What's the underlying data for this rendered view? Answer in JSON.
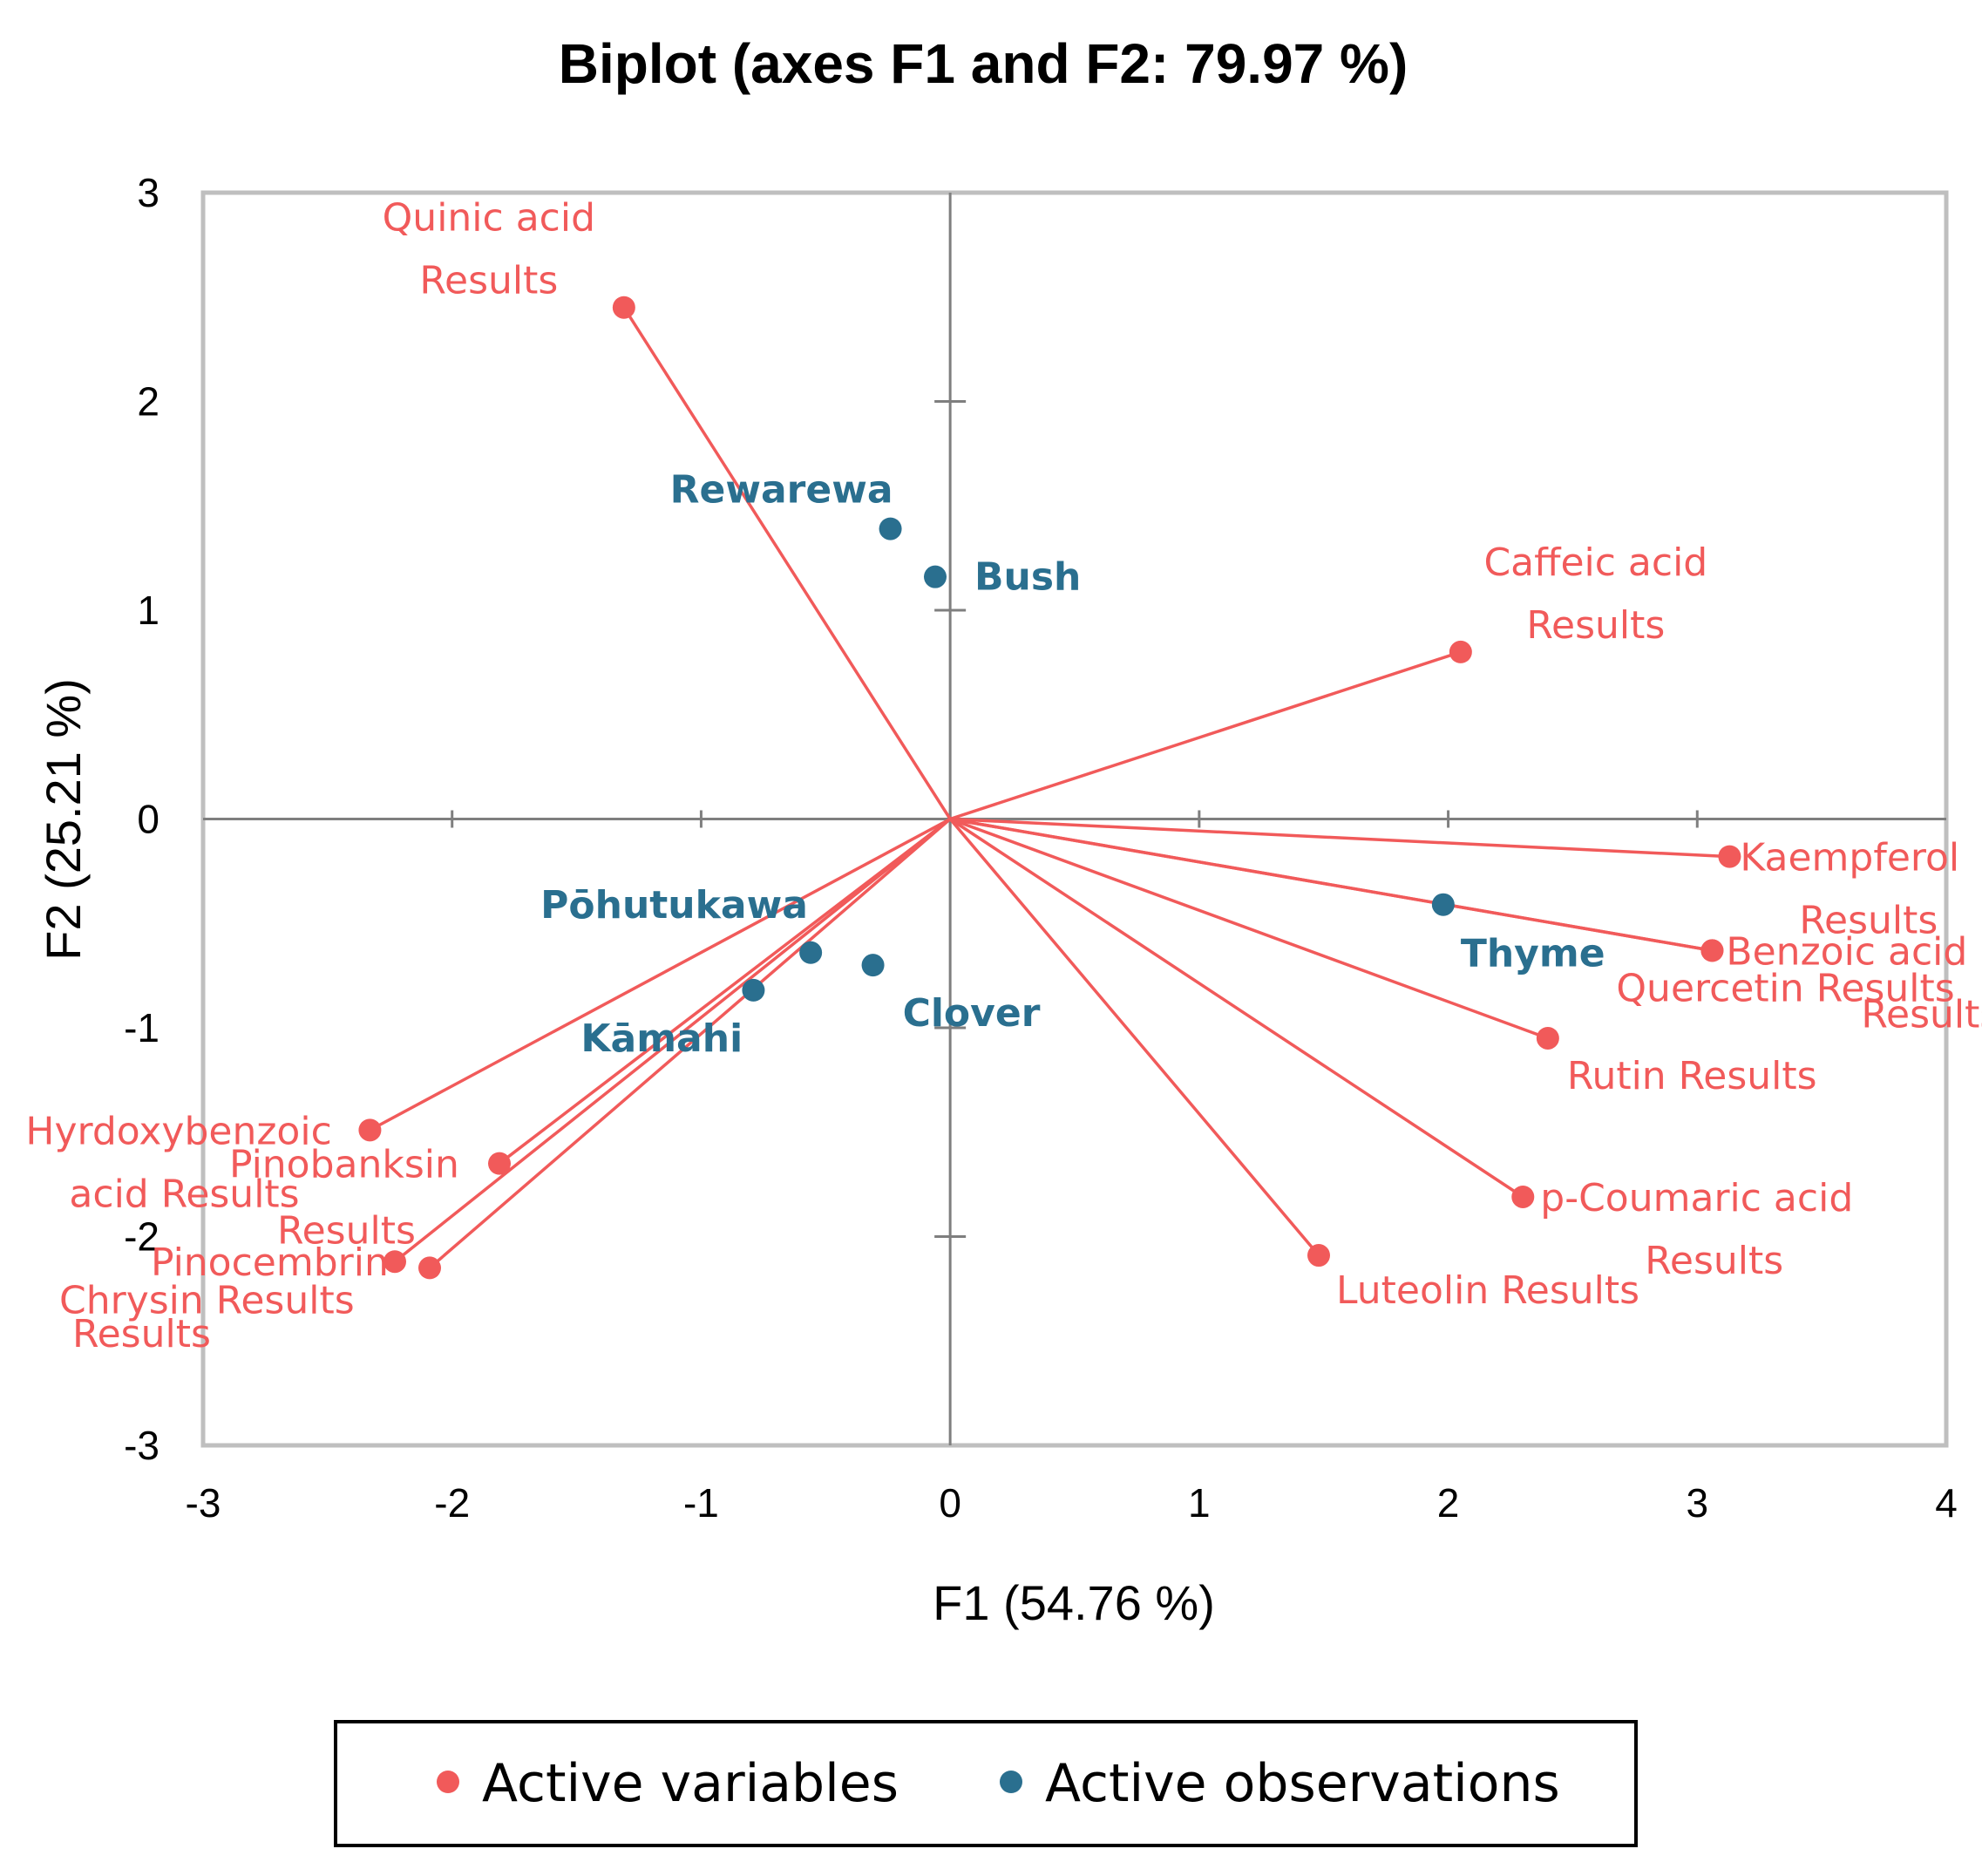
{
  "chart_data": {
    "type": "scatter",
    "title": "Biplot (axes F1 and F2: 79.97 %)",
    "xlabel": "F1 (54.76 %)",
    "ylabel": "F2 (25.21 %)",
    "xlim": [
      -3,
      4
    ],
    "ylim": [
      -3,
      3
    ],
    "xticks": [
      "-3",
      "-2",
      "-1",
      "0",
      "1",
      "2",
      "3",
      "4"
    ],
    "yticks": [
      "3",
      "2",
      "1",
      "0",
      "-1",
      "-2",
      "-3"
    ],
    "colors": {
      "variables": "#f15a5a",
      "observations": "#2a6f8f"
    },
    "legend": {
      "position": "bottom",
      "entries": [
        "Active variables",
        "Active observations"
      ]
    },
    "series": [
      {
        "name": "Active variables",
        "kind": "vectors",
        "points": [
          {
            "label": [
              "Quinic acid",
              "Results"
            ],
            "x": -1.31,
            "y": 2.45
          },
          {
            "label": [
              "Caffeic acid",
              "Results"
            ],
            "x": 2.05,
            "y": 0.8
          },
          {
            "label": [
              "Kaempferol",
              "Results"
            ],
            "x": 3.13,
            "y": -0.18
          },
          {
            "label": [
              "Benzoic acid",
              "Results"
            ],
            "x": 3.06,
            "y": -0.63
          },
          {
            "label": [
              "Quercetin Results"
            ],
            "x": 3.06,
            "y": -0.63
          },
          {
            "label": [
              "Rutin Results"
            ],
            "x": 2.4,
            "y": -1.05
          },
          {
            "label": [
              "p-Coumaric acid",
              "Results"
            ],
            "x": 2.3,
            "y": -1.81
          },
          {
            "label": [
              "Luteolin Results"
            ],
            "x": 1.48,
            "y": -2.09
          },
          {
            "label": [
              "Hyrdoxybenzoic",
              "acid Results"
            ],
            "x": -2.33,
            "y": -1.49
          },
          {
            "label": [
              "Pinobanksin",
              "Results"
            ],
            "x": -1.81,
            "y": -1.65
          },
          {
            "label": [
              "Pinocembrin",
              "Results"
            ],
            "x": -2.23,
            "y": -2.12
          },
          {
            "label": [
              "Chrysin Results"
            ],
            "x": -2.09,
            "y": -2.15
          }
        ]
      },
      {
        "name": "Active observations",
        "kind": "points",
        "points": [
          {
            "label": "Rewarewa",
            "x": -0.24,
            "y": 1.39
          },
          {
            "label": "Bush",
            "x": -0.06,
            "y": 1.16
          },
          {
            "label": "Thyme",
            "x": 1.98,
            "y": -0.41
          },
          {
            "label": "Pōhutukawa",
            "x": -0.56,
            "y": -0.64
          },
          {
            "label": "Kāmahi",
            "x": -0.79,
            "y": -0.82
          },
          {
            "label": "Clover",
            "x": -0.31,
            "y": -0.7
          }
        ]
      }
    ]
  }
}
